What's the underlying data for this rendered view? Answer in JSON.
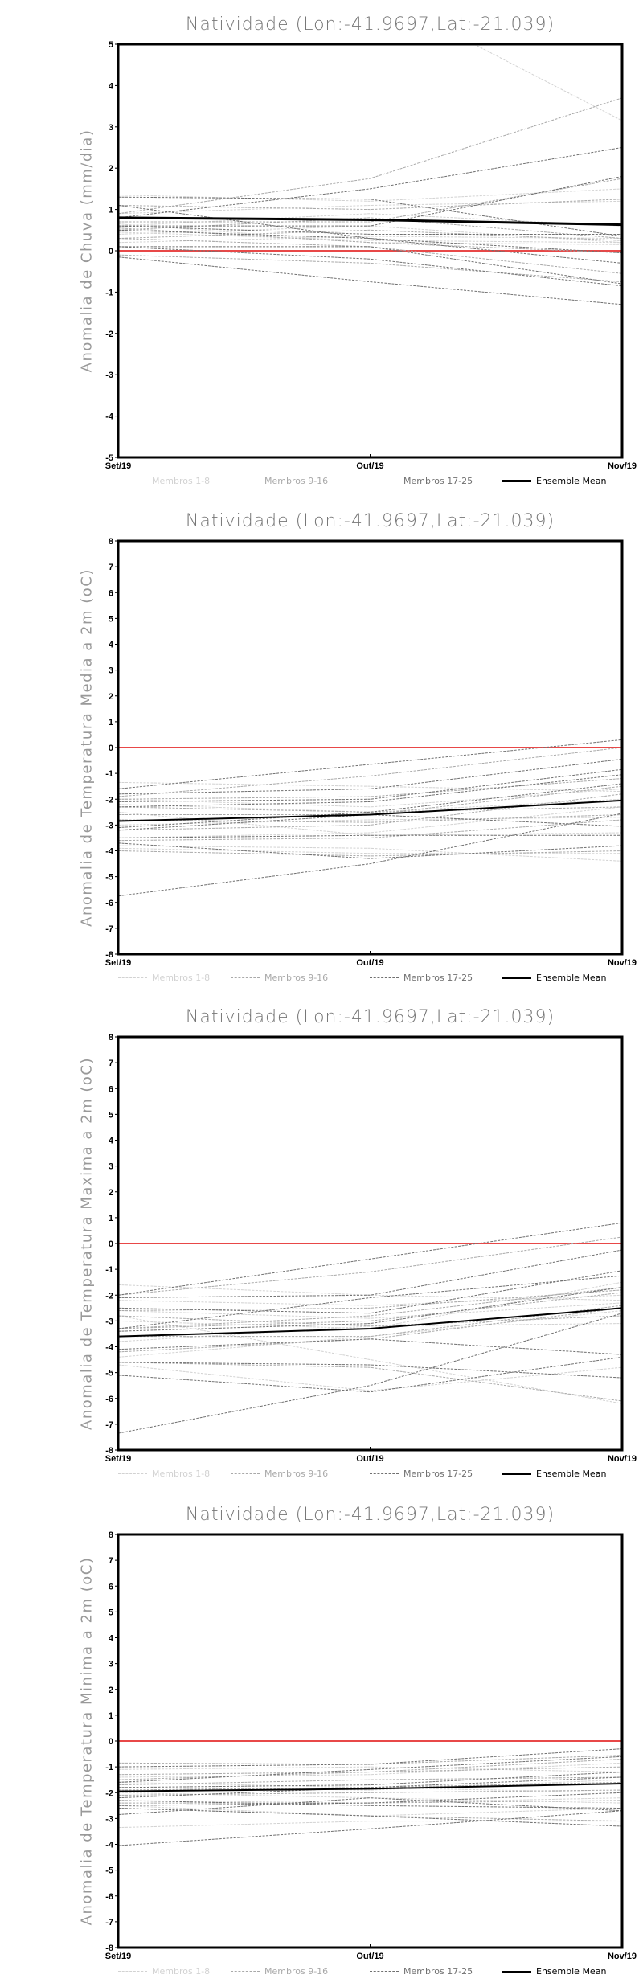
{
  "x_labels": [
    "Set/19",
    "Out/19",
    "Nov/19"
  ],
  "legend": {
    "group1": "Membros 1-8",
    "group2": "Membros 9-16",
    "group3": "Membros 17-25",
    "mean": "Ensemble Mean"
  },
  "colors": {
    "group1": "#d2d2d2",
    "group2": "#a9a9a9",
    "group3": "#707070",
    "mean": "#000000",
    "zero": "#e84848"
  },
  "chart_data": [
    {
      "type": "line",
      "title": "Natividade (Lon:-41.9697,Lat:-21.039)",
      "ylabel": "Anomalia de Chuva (mm/dia)",
      "x": [
        "Set/19",
        "Out/19",
        "Nov/19"
      ],
      "ylim": [
        -5,
        5
      ],
      "yticks": [
        -5,
        -4,
        -3,
        -2,
        -1,
        0,
        1,
        2,
        3,
        4,
        5
      ],
      "mean_width": 3,
      "members": [
        [
          6.5,
          6.3,
          3.15
        ],
        [
          1.35,
          1.2,
          1.5
        ],
        [
          0.9,
          1.1,
          1.2
        ],
        [
          0.6,
          0.9,
          0.6
        ],
        [
          0.4,
          0.6,
          0.2
        ],
        [
          0.2,
          0.35,
          0.3
        ],
        [
          0.65,
          0.2,
          0.15
        ],
        [
          0.45,
          0.25,
          0.2
        ],
        [
          0.9,
          1.75,
          3.7
        ],
        [
          0.7,
          0.7,
          1.75
        ],
        [
          1.1,
          1.0,
          1.25
        ],
        [
          0.5,
          0.8,
          0.3
        ],
        [
          0.3,
          0.5,
          0.25
        ],
        [
          0.3,
          0.1,
          -0.55
        ],
        [
          0.55,
          0.2,
          -0.05
        ],
        [
          -0.1,
          -0.3,
          -0.75
        ],
        [
          0.8,
          1.5,
          2.5
        ],
        [
          0.6,
          0.6,
          1.8
        ],
        [
          1.3,
          1.25,
          0.35
        ],
        [
          0.6,
          0.4,
          0.4
        ],
        [
          0.5,
          0.3,
          -0.05
        ],
        [
          1.1,
          0.3,
          -0.3
        ],
        [
          0.1,
          0.1,
          -0.8
        ],
        [
          0.1,
          -0.2,
          -0.85
        ],
        [
          -0.15,
          -0.75,
          -1.3
        ]
      ],
      "mean": [
        0.8,
        0.75,
        0.63
      ]
    },
    {
      "type": "line",
      "title": "Natividade (Lon:-41.9697,Lat:-21.039)",
      "ylabel": "Anomalia de Temperatura Media a 2m (oC)",
      "x": [
        "Set/19",
        "Out/19",
        "Nov/19"
      ],
      "ylim": [
        -8,
        8
      ],
      "yticks": [
        -8,
        -7,
        -6,
        -5,
        -4,
        -3,
        -2,
        -1,
        0,
        1,
        2,
        3,
        4,
        5,
        6,
        7,
        8
      ],
      "mean_width": 2,
      "members": [
        [
          -1.35,
          -1.5,
          -1.7
        ],
        [
          -2.2,
          -2.5,
          -2.0
        ],
        [
          -3.0,
          -2.8,
          -2.7
        ],
        [
          -3.8,
          -3.9,
          -4.4
        ],
        [
          -2.5,
          -3.4,
          -3.3
        ],
        [
          -3.9,
          -4.1,
          -4.1
        ],
        [
          -2.0,
          -2.3,
          -1.6
        ],
        [
          -3.5,
          -3.3,
          -2.3
        ],
        [
          -1.9,
          -1.1,
          0.0
        ],
        [
          -2.3,
          -2.5,
          -2.3
        ],
        [
          -2.6,
          -2.6,
          -1.5
        ],
        [
          -3.2,
          -3.0,
          -1.8
        ],
        [
          -3.6,
          -3.5,
          -2.8
        ],
        [
          -4.0,
          -4.2,
          -4.0
        ],
        [
          -2.0,
          -1.9,
          -1.2
        ],
        [
          -2.8,
          -2.9,
          -2.6
        ],
        [
          -1.6,
          -0.65,
          0.3
        ],
        [
          -1.8,
          -1.6,
          -0.45
        ],
        [
          -2.1,
          -2.0,
          -0.85
        ],
        [
          -2.3,
          -2.1,
          -1.05
        ],
        [
          -3.1,
          -2.5,
          -1.4
        ],
        [
          -3.5,
          -3.4,
          -3.4
        ],
        [
          -3.7,
          -4.3,
          -3.8
        ],
        [
          -3.2,
          -2.6,
          -3.05
        ],
        [
          -5.75,
          -4.5,
          -2.55
        ]
      ],
      "mean": [
        -2.85,
        -2.6,
        -2.05
      ]
    },
    {
      "type": "line",
      "title": "Natividade (Lon:-41.9697,Lat:-21.039)",
      "ylabel": "Anomalia de Temperatura Maxima a 2m (oC)",
      "x": [
        "Set/19",
        "Out/19",
        "Nov/19"
      ],
      "ylim": [
        -8,
        8
      ],
      "yticks": [
        -8,
        -7,
        -6,
        -5,
        -4,
        -3,
        -2,
        -1,
        0,
        1,
        2,
        3,
        4,
        5,
        6,
        7,
        8
      ],
      "mean_width": 2,
      "members": [
        [
          -1.6,
          -2.0,
          -2.2
        ],
        [
          -2.6,
          -2.9,
          -2.3
        ],
        [
          -2.8,
          -4.5,
          -6.2
        ],
        [
          -3.8,
          -3.2,
          -3.1
        ],
        [
          -4.4,
          -3.6,
          -2.6
        ],
        [
          -4.7,
          -5.7,
          -4.8
        ],
        [
          -3.0,
          -3.3,
          -1.5
        ],
        [
          -2.2,
          -2.4,
          -2.0
        ],
        [
          -2.0,
          -1.1,
          0.25
        ],
        [
          -2.6,
          -2.5,
          -1.8
        ],
        [
          -3.3,
          -3.0,
          -1.9
        ],
        [
          -3.6,
          -3.6,
          -2.4
        ],
        [
          -4.2,
          -3.7,
          -2.5
        ],
        [
          -4.6,
          -4.8,
          -6.1
        ],
        [
          -2.8,
          -3.2,
          -2.8
        ],
        [
          -3.3,
          -2.8,
          -1.7
        ],
        [
          -2.0,
          -0.6,
          0.8
        ],
        [
          -2.1,
          -2.0,
          -0.25
        ],
        [
          -2.5,
          -2.7,
          -1.05
        ],
        [
          -3.3,
          -2.1,
          -1.25
        ],
        [
          -3.4,
          -3.1,
          -1.7
        ],
        [
          -4.1,
          -3.7,
          -4.3
        ],
        [
          -4.6,
          -4.7,
          -5.2
        ],
        [
          -5.1,
          -5.75,
          -4.4
        ],
        [
          -7.35,
          -5.5,
          -2.7
        ]
      ],
      "mean": [
        -3.6,
        -3.3,
        -2.5
      ]
    },
    {
      "type": "line",
      "title": "Natividade (Lon:-41.9697,Lat:-21.039)",
      "ylabel": "Anomalia de Temperatura Minima a 2m (oC)",
      "x": [
        "Set/19",
        "Out/19",
        "Nov/19"
      ],
      "ylim": [
        -8,
        8
      ],
      "yticks": [
        -8,
        -7,
        -6,
        -5,
        -4,
        -3,
        -2,
        -1,
        0,
        1,
        2,
        3,
        4,
        5,
        6,
        7,
        8
      ],
      "mean_width": 2,
      "members": [
        [
          -1.4,
          -1.3,
          -0.85
        ],
        [
          -1.6,
          -1.8,
          -2.0
        ],
        [
          -2.0,
          -2.2,
          -2.4
        ],
        [
          -2.5,
          -2.9,
          -2.6
        ],
        [
          -3.35,
          -3.1,
          -3.1
        ],
        [
          -1.1,
          -1.0,
          -1.2
        ],
        [
          -1.8,
          -1.9,
          -1.5
        ],
        [
          -2.3,
          -2.4,
          -2.2
        ],
        [
          -0.85,
          -0.9,
          -0.55
        ],
        [
          -1.5,
          -1.2,
          -0.7
        ],
        [
          -1.7,
          -1.5,
          -1.4
        ],
        [
          -2.1,
          -2.0,
          -1.9
        ],
        [
          -2.4,
          -2.4,
          -2.3
        ],
        [
          -2.6,
          -2.9,
          -3.1
        ],
        [
          -1.3,
          -1.2,
          -1.0
        ],
        [
          -1.9,
          -1.8,
          -1.6
        ],
        [
          -1.0,
          -0.9,
          -0.3
        ],
        [
          -1.6,
          -1.1,
          -0.6
        ],
        [
          -1.8,
          -1.7,
          -1.2
        ],
        [
          -2.2,
          -1.8,
          -1.4
        ],
        [
          -2.5,
          -2.4,
          -2.0
        ],
        [
          -2.3,
          -2.5,
          -2.6
        ],
        [
          -2.6,
          -2.9,
          -3.3
        ],
        [
          -2.85,
          -2.2,
          -2.7
        ],
        [
          -4.05,
          -3.4,
          -2.7
        ]
      ],
      "mean": [
        -1.95,
        -1.85,
        -1.65
      ]
    }
  ]
}
